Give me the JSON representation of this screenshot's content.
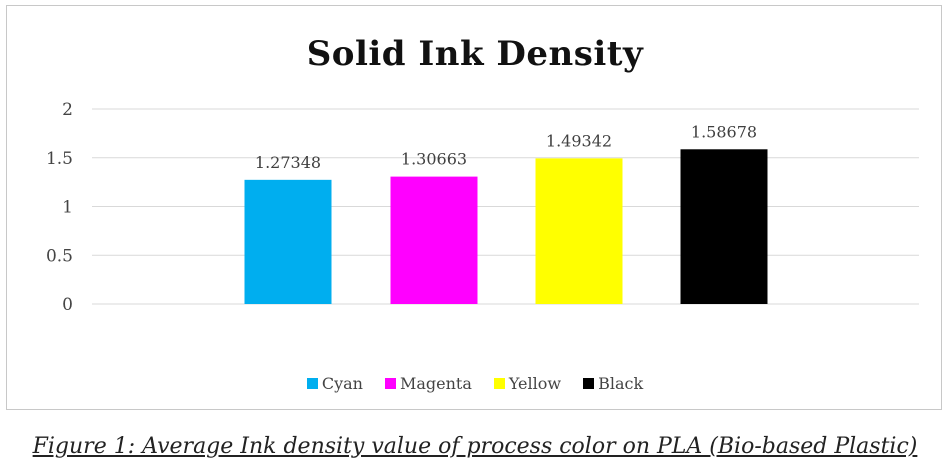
{
  "chart_data": {
    "type": "bar",
    "title": "Solid Ink Density",
    "categories": [
      "Cyan",
      "Magenta",
      "Yellow",
      "Black"
    ],
    "values": [
      1.27348,
      1.30663,
      1.49342,
      1.58678
    ],
    "data_labels": [
      "1.27348",
      "1.30663",
      "1.49342",
      "1.58678"
    ],
    "colors": [
      "#00aeef",
      "#ff00ff",
      "#ffff00",
      "#000000"
    ],
    "ylim": [
      0,
      2
    ],
    "yticks": [
      0,
      0.5,
      1,
      1.5,
      2
    ],
    "ytick_labels": [
      "0",
      "0.5",
      "1",
      "1.5",
      "2"
    ],
    "xlabel": "",
    "ylabel": "",
    "grid": true,
    "legend_position": "bottom",
    "legend": [
      "Cyan",
      "Magenta",
      "Yellow",
      "Black"
    ]
  },
  "caption": "Figure 1: Average Ink density value of process color on PLA (Bio-based Plastic)"
}
